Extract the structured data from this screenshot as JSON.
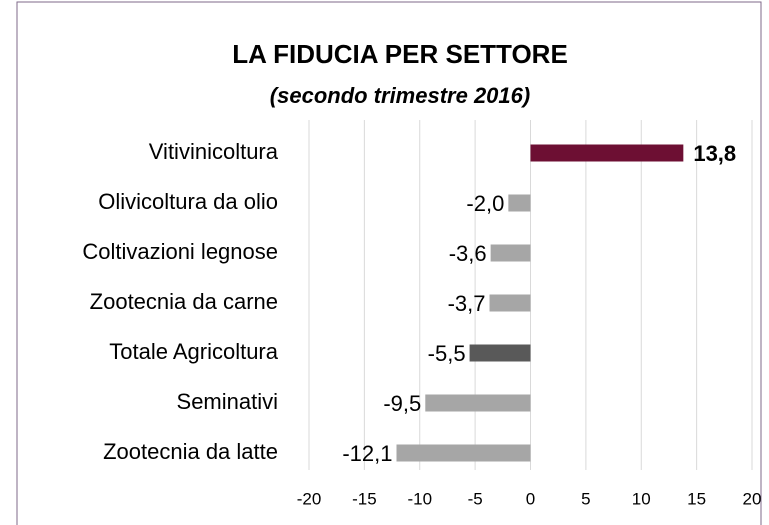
{
  "chart_data": {
    "type": "bar",
    "orientation": "horizontal",
    "title": "LA FIDUCIA PER SETTORE",
    "subtitle": "(secondo trimestre 2016)",
    "categories": [
      "Vitivinicoltura",
      "Olivicoltura da olio",
      "Coltivazioni legnose",
      "Zootecnia da carne",
      "Totale Agricoltura",
      "Seminativi",
      "Zootecnia da latte"
    ],
    "values": [
      13.8,
      -2.0,
      -3.6,
      -3.7,
      -5.5,
      -9.5,
      -12.1
    ],
    "value_labels": [
      "13,8",
      "-2,0",
      "-3,6",
      "-3,7",
      "-5,5",
      "-9,5",
      "-12,1"
    ],
    "colors": [
      "#6d0f33",
      "#a6a6a6",
      "#a6a6a6",
      "#a6a6a6",
      "#595959",
      "#a6a6a6",
      "#a6a6a6"
    ],
    "xlim": [
      -20,
      20
    ],
    "xticks": [
      -20,
      -15,
      -10,
      -5,
      0,
      5,
      10,
      15,
      20
    ],
    "grid": true
  }
}
